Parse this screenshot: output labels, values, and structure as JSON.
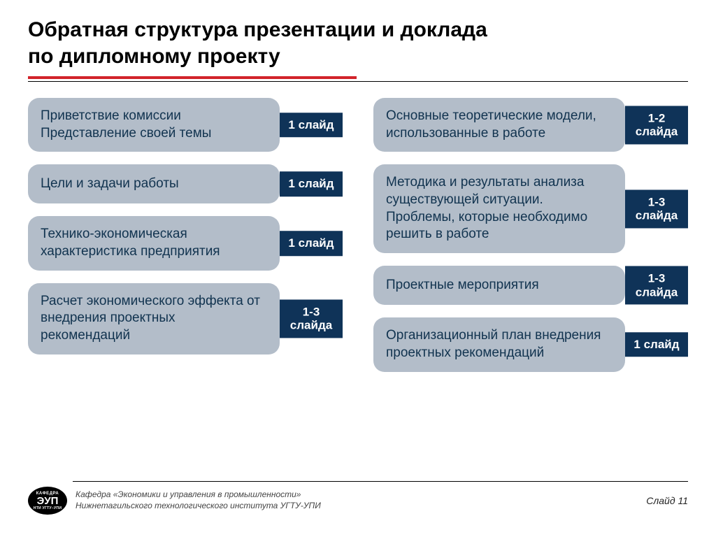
{
  "colors": {
    "accent": "#d2232a",
    "bubble_bg": "#b3bdc9",
    "bubble_text": "#11334f",
    "tag_bg": "#0f3358",
    "tag_text": "#ffffff"
  },
  "title_line1": "Обратная структура презентации и доклада",
  "title_line2": "по дипломному проекту",
  "left_col": [
    {
      "text": "Приветствие комиссии Представление своей темы",
      "tag": "1 слайд"
    },
    {
      "text": "Цели и задачи работы",
      "tag": "1 слайд"
    },
    {
      "text": "Технико-экономическая характеристика предприятия",
      "tag": "1 слайд"
    },
    {
      "text": "Расчет экономического эффекта от внедрения проектных рекомендаций",
      "tag": "1-3 слайда"
    }
  ],
  "right_col": [
    {
      "text": "Основные теоретические модели, использованные в работе",
      "tag": "1-2 слайда"
    },
    {
      "text": "Методика и результаты анализа существующей ситуации. Проблемы, которые необходимо решить в работе",
      "tag": "1-3 слайда"
    },
    {
      "text": "Проектные мероприятия",
      "tag": "1-3 слайда"
    },
    {
      "text": "Организационный план внедрения проектных рекомендаций",
      "tag": "1 слайд"
    }
  ],
  "logo": {
    "top": "КАФЕДРА",
    "mid": "ЭУП",
    "bot": "НТИ УГТУ–УПИ"
  },
  "footer_line1": "Кафедра «Экономики и управления в промышленности»",
  "footer_line2": "Нижнетагильского технологического института УГТУ-УПИ",
  "slide_number": "Слайд 11"
}
